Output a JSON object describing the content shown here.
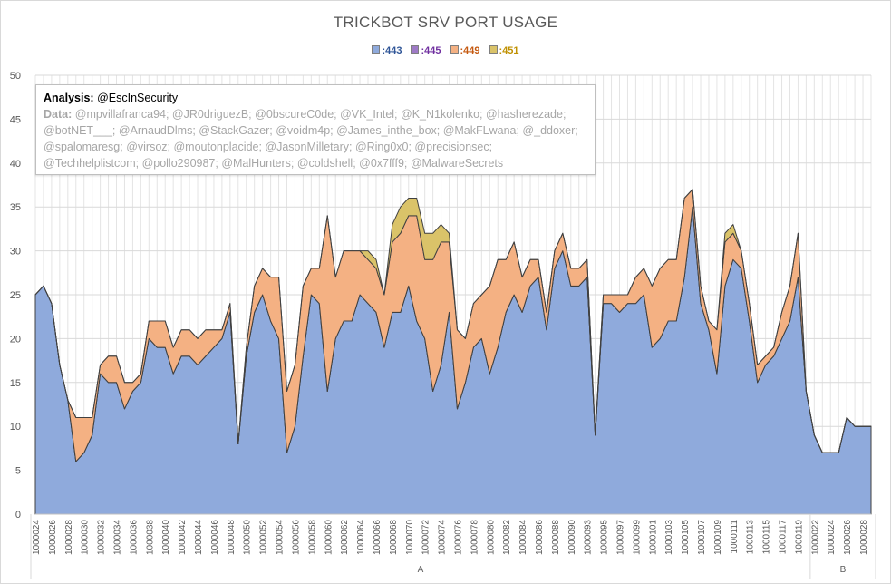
{
  "chart_data": {
    "type": "area",
    "stacked": true,
    "title": "TRICKBOT SRV PORT USAGE",
    "ylim": [
      0,
      50
    ],
    "yticks": [
      0,
      5,
      10,
      15,
      20,
      25,
      30,
      35,
      40,
      45,
      50
    ],
    "grid": true,
    "legend_position": "top-center",
    "x_labels": [
      "1000024",
      "1000026",
      "1000028",
      "1000030",
      "1000032",
      "1000034",
      "1000036",
      "1000038",
      "1000040",
      "1000042",
      "1000044",
      "1000046",
      "1000048",
      "1000050",
      "1000052",
      "1000054",
      "1000056",
      "1000058",
      "1000060",
      "1000062",
      "1000064",
      "1000066",
      "1000068",
      "1000070",
      "1000072",
      "1000074",
      "1000076",
      "1000078",
      "1000080",
      "1000082",
      "1000084",
      "1000086",
      "1000088",
      "1000090",
      "1000093",
      "1000095",
      "1000097",
      "1000099",
      "1000101",
      "1000103",
      "1000105",
      "1000107",
      "1000109",
      "1000111",
      "1000113",
      "1000115",
      "1000117",
      "1000119",
      "1000022",
      "1000024",
      "1000026",
      "1000028"
    ],
    "groups": [
      {
        "label": "A",
        "from": 0,
        "to": 95
      },
      {
        "label": "B",
        "from": 96,
        "to": 103
      }
    ],
    "series": [
      {
        "name": ":443",
        "color": "#8faadc",
        "label_color": "#2f5597",
        "values": [
          25,
          26,
          24,
          17,
          13,
          6,
          7,
          9,
          16,
          15,
          15,
          12,
          14,
          15,
          20,
          19,
          19,
          16,
          18,
          18,
          17,
          18,
          19,
          20,
          23,
          8,
          18,
          23,
          25,
          22,
          20,
          7,
          10,
          18,
          25,
          24,
          14,
          20,
          22,
          22,
          25,
          24,
          23,
          19,
          23,
          23,
          26,
          22,
          20,
          14,
          17,
          23,
          12,
          15,
          19,
          20,
          16,
          19,
          23,
          25,
          23,
          26,
          27,
          21,
          28,
          30,
          26,
          26,
          27,
          9,
          24,
          24,
          23,
          24,
          24,
          25,
          19,
          20,
          22,
          22,
          27,
          35,
          24,
          21,
          16,
          26,
          29,
          28,
          22,
          15,
          17,
          18,
          20,
          22,
          27,
          14,
          9,
          7,
          7,
          7,
          11,
          10,
          10,
          10
        ]
      },
      {
        "name": ":445",
        "color": "#9e7ac6",
        "label_color": "#7030a0",
        "values": [
          0,
          0,
          0,
          0,
          0,
          0,
          0,
          0,
          0,
          0,
          0,
          0,
          0,
          0,
          0,
          0,
          0,
          0,
          0,
          0,
          0,
          0,
          0,
          0,
          0,
          0,
          0,
          0,
          0,
          0,
          0,
          0,
          0,
          0,
          0,
          0,
          0,
          0,
          0,
          0,
          0,
          0,
          0,
          0,
          0,
          0,
          0,
          0,
          0,
          0,
          0,
          0,
          0,
          0,
          0,
          0,
          0,
          0,
          0,
          0,
          0,
          0,
          0,
          0,
          0,
          0,
          0,
          0,
          0,
          0,
          0,
          0,
          0,
          0,
          0,
          0,
          0,
          0,
          0,
          0,
          0,
          0,
          0,
          0,
          0,
          0,
          0,
          0,
          0,
          0,
          0,
          0,
          0,
          0,
          0,
          0,
          0,
          0,
          0,
          0,
          0,
          0,
          0,
          0
        ]
      },
      {
        "name": ":449",
        "color": "#f4b183",
        "label_color": "#c55a11",
        "values": [
          0,
          0,
          0,
          0,
          0,
          5,
          4,
          2,
          1,
          3,
          3,
          3,
          1,
          1,
          2,
          3,
          3,
          3,
          3,
          3,
          3,
          3,
          2,
          1,
          1,
          0,
          1,
          3,
          3,
          5,
          7,
          7,
          7,
          8,
          3,
          4,
          20,
          7,
          8,
          8,
          5,
          5,
          5,
          6,
          8,
          9,
          8,
          12,
          9,
          15,
          14,
          8,
          9,
          5,
          5,
          5,
          10,
          10,
          6,
          6,
          4,
          3,
          2,
          2,
          2,
          2,
          2,
          2,
          2,
          0,
          1,
          1,
          2,
          1,
          3,
          3,
          7,
          8,
          7,
          7,
          9,
          2,
          2,
          1,
          5,
          5,
          3,
          2,
          2,
          2,
          1,
          1,
          3,
          4,
          5,
          0,
          0,
          0,
          0,
          0,
          0,
          0,
          0,
          0
        ]
      },
      {
        "name": ":451",
        "color": "#dac369",
        "label_color": "#bf9000",
        "values": [
          0,
          0,
          0,
          0,
          0,
          0,
          0,
          0,
          0,
          0,
          0,
          0,
          0,
          0,
          0,
          0,
          0,
          0,
          0,
          0,
          0,
          0,
          0,
          0,
          0,
          0,
          0,
          0,
          0,
          0,
          0,
          0,
          0,
          0,
          0,
          0,
          0,
          0,
          0,
          0,
          0,
          1,
          1,
          0,
          2,
          3,
          2,
          2,
          3,
          3,
          2,
          1,
          0,
          0,
          0,
          0,
          0,
          0,
          0,
          0,
          0,
          0,
          0,
          0,
          0,
          0,
          0,
          0,
          0,
          0,
          0,
          0,
          0,
          0,
          0,
          0,
          0,
          0,
          0,
          0,
          0,
          0,
          0,
          0,
          0,
          1,
          1,
          0,
          0,
          0,
          0,
          0,
          0,
          0,
          0,
          0,
          0,
          0,
          0,
          0,
          0,
          0,
          0,
          0
        ]
      }
    ]
  },
  "annotation": {
    "analysis_label": "Analysis:",
    "analysis_value": "@EscInSecurity",
    "data_label": "Data:",
    "data_value": "@mpvillafranca94; @JR0driguezB; @0bscureC0de; @VK_Intel; @K_N1kolenko; @hasherezade; @botNET___; @ArnaudDlms; @StackGazer; @voidm4p; @James_inthe_box; @MakFLwana; @_ddoxer; @spalomaresg; @virsoz; @moutonplacide; @JasonMilletary; @Ring0x0; @precisionsec; @Techhelplistcom; @pollo290987; @MalHunters; @coldshell; @0x7fff9; @MalwareSecrets"
  }
}
